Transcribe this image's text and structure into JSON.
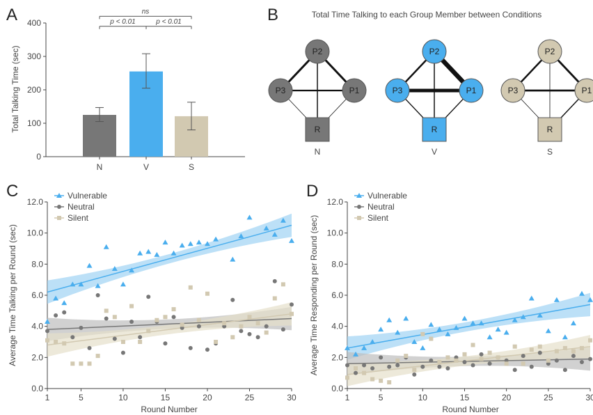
{
  "panel_letters": {
    "A": "A",
    "B": "B",
    "C": "C",
    "D": "D"
  },
  "colors": {
    "N": "#777777",
    "V": "#4aaeee",
    "S": "#d2c9b1",
    "node_stroke": "#555555",
    "v_band": "#9fd3f4",
    "n_band": "#bdbdbd",
    "s_band": "#e6dfcb"
  },
  "chart_data": [
    {
      "id": "A",
      "type": "bar",
      "categories": [
        "N",
        "V",
        "S"
      ],
      "values": [
        125,
        255,
        121
      ],
      "errors": [
        [
          105,
          147
        ],
        [
          205,
          308
        ],
        [
          80,
          163
        ]
      ],
      "ylabel": "Total Talking Time (sec)",
      "ylim": [
        0,
        400
      ],
      "yticks": [
        0,
        100,
        200,
        300,
        400
      ],
      "annotations": [
        {
          "text": "ns",
          "from": "N",
          "to": "S",
          "level": 420
        },
        {
          "text": "p < 0.01",
          "from": "N",
          "to": "V",
          "level": 390
        },
        {
          "text": "p < 0.01",
          "from": "V",
          "to": "S",
          "level": 390
        }
      ]
    },
    {
      "id": "B",
      "type": "network",
      "title": "Total Time Talking to each Group Member between Conditions",
      "groups": [
        {
          "label": "N",
          "color": "N",
          "edges": {
            "P2-P3": 3,
            "P2-P1": 3,
            "P3-P1": 2.2,
            "P2-R": 1.5,
            "P3-R": 0.8,
            "P1-R": 0.8
          }
        },
        {
          "label": "V",
          "color": "V",
          "edges": {
            "P2-P3": 2.5,
            "P2-P1": 6.5,
            "P3-P1": 5,
            "P2-R": 1.5,
            "P3-R": 1.3,
            "P1-R": 1.3
          }
        },
        {
          "label": "S",
          "color": "S",
          "edges": {
            "P2-P3": 2.5,
            "P2-P1": 2.8,
            "P3-P1": 2.8,
            "P2-R": 0.8,
            "P3-R": 0.8,
            "P1-R": 1.5
          }
        }
      ],
      "nodes": [
        "P2",
        "P3",
        "P1",
        "R"
      ]
    },
    {
      "id": "C",
      "type": "scatter",
      "xlabel": "Round Number",
      "ylabel": "Average Time Talking per Round (sec)",
      "xlim": [
        1,
        30
      ],
      "ylim": [
        0,
        12
      ],
      "xticks": [
        1,
        5,
        10,
        15,
        20,
        25,
        30
      ],
      "yticks": [
        "0.0",
        "2.0",
        "4.0",
        "6.0",
        "8.0",
        "10.0",
        "12.0"
      ],
      "series": [
        {
          "name": "Vulnerable",
          "color": "V",
          "marker": "triangle",
          "x": [
            1,
            2,
            3,
            4,
            5,
            6,
            7,
            8,
            9,
            10,
            11,
            12,
            13,
            14,
            15,
            16,
            17,
            18,
            19,
            20,
            21,
            23,
            24,
            25,
            27,
            28,
            29,
            30
          ],
          "y": [
            4.3,
            5.8,
            5.5,
            6.7,
            6.7,
            7.9,
            6.6,
            9.1,
            7.7,
            6.7,
            7.6,
            8.7,
            8.8,
            8.6,
            9.4,
            8.7,
            9.2,
            9.3,
            9.4,
            9.3,
            9.6,
            8.3,
            9.8,
            11.0,
            10.3,
            9.9,
            10.8,
            9.5
          ],
          "fit": [
            6.2,
            10.5
          ]
        },
        {
          "name": "Neutral",
          "color": "N",
          "marker": "circle",
          "x": [
            1,
            2,
            3,
            4,
            5,
            6,
            7,
            8,
            9,
            10,
            11,
            12,
            13,
            14,
            15,
            16,
            17,
            18,
            19,
            20,
            21,
            22,
            23,
            24,
            25,
            26,
            27,
            28,
            29,
            30
          ],
          "y": [
            3.7,
            4.7,
            4.9,
            3.3,
            3.9,
            2.6,
            6.0,
            4.5,
            3.2,
            2.3,
            4.3,
            3.3,
            5.9,
            4.3,
            2.9,
            4.6,
            3.9,
            2.6,
            4.0,
            2.5,
            2.9,
            4.0,
            5.7,
            3.7,
            3.5,
            3.3,
            4.0,
            6.9,
            3.8,
            5.4
          ],
          "fit": [
            3.8,
            4.5
          ]
        },
        {
          "name": "Silent",
          "color": "S",
          "marker": "square",
          "x": [
            1,
            2,
            3,
            4,
            5,
            6,
            7,
            8,
            9,
            10,
            11,
            12,
            13,
            14,
            15,
            16,
            17,
            18,
            19,
            20,
            21,
            22,
            23,
            24,
            25,
            26,
            27,
            28,
            29,
            30
          ],
          "y": [
            3.1,
            3.0,
            2.9,
            1.6,
            1.6,
            1.6,
            2.1,
            5.0,
            4.6,
            3.0,
            5.3,
            3.0,
            3.7,
            4.4,
            4.6,
            5.1,
            4.1,
            6.5,
            4.4,
            6.1,
            3.0,
            4.2,
            3.3,
            4.0,
            4.6,
            4.2,
            3.6,
            5.8,
            6.7,
            4.8
          ],
          "fit": [
            2.8,
            4.8
          ]
        }
      ],
      "legend": "top-left"
    },
    {
      "id": "D",
      "type": "scatter",
      "xlabel": "Round Number",
      "ylabel": "Average Time Responding per Round (sec)",
      "xlim": [
        1,
        30
      ],
      "ylim": [
        0,
        12
      ],
      "xticks": [
        1,
        5,
        10,
        15,
        20,
        25,
        30
      ],
      "yticks": [
        "0.0",
        "2.0",
        "4.0",
        "6.0",
        "8.0",
        "10.0",
        "12.0"
      ],
      "series": [
        {
          "name": "Vulnerable",
          "color": "V",
          "marker": "triangle",
          "x": [
            1,
            2,
            3,
            4,
            5,
            6,
            7,
            8,
            9,
            10,
            11,
            12,
            13,
            14,
            15,
            16,
            17,
            18,
            19,
            20,
            21,
            22,
            23,
            24,
            25,
            26,
            27,
            28,
            29,
            30
          ],
          "y": [
            2.6,
            2.2,
            2.6,
            3.0,
            3.8,
            4.4,
            3.6,
            4.5,
            3.0,
            2.6,
            4.1,
            3.8,
            3.5,
            3.9,
            4.5,
            4.2,
            4.2,
            3.3,
            3.8,
            3.6,
            4.4,
            4.6,
            5.8,
            4.7,
            3.7,
            5.7,
            3.3,
            4.2,
            6.1,
            5.7
          ],
          "fit": [
            2.6,
            5.4
          ]
        },
        {
          "name": "Neutral",
          "color": "N",
          "marker": "circle",
          "x": [
            1,
            2,
            3,
            4,
            5,
            6,
            7,
            8,
            9,
            10,
            11,
            12,
            13,
            14,
            15,
            16,
            17,
            18,
            19,
            20,
            21,
            22,
            23,
            24,
            25,
            26,
            27,
            28,
            29,
            30
          ],
          "y": [
            1.5,
            1.0,
            1.5,
            1.3,
            2.0,
            1.4,
            1.5,
            2.0,
            0.9,
            1.4,
            1.8,
            1.4,
            1.3,
            2.0,
            1.7,
            1.5,
            2.2,
            1.6,
            2.0,
            1.8,
            1.2,
            2.1,
            1.4,
            2.3,
            1.6,
            1.8,
            1.2,
            2.1,
            1.7,
            1.9
          ],
          "fit": [
            1.6,
            1.9
          ]
        },
        {
          "name": "Silent",
          "color": "S",
          "marker": "square",
          "x": [
            1,
            2,
            3,
            4,
            5,
            6,
            7,
            8,
            9,
            10,
            11,
            12,
            13,
            14,
            15,
            16,
            17,
            18,
            19,
            20,
            21,
            22,
            23,
            24,
            25,
            26,
            27,
            28,
            29,
            30
          ],
          "y": [
            0.7,
            1.3,
            1.0,
            0.6,
            0.5,
            0.4,
            1.8,
            2.1,
            1.2,
            3.5,
            3.2,
            1.7,
            2.0,
            1.8,
            2.2,
            2.8,
            1.9,
            2.3,
            2.0,
            1.6,
            2.7,
            1.6,
            2.5,
            2.7,
            1.8,
            2.4,
            2.6,
            2.4,
            2.6,
            3.1
          ],
          "fit": [
            0.9,
            2.7
          ]
        }
      ],
      "legend": "top-left"
    }
  ]
}
